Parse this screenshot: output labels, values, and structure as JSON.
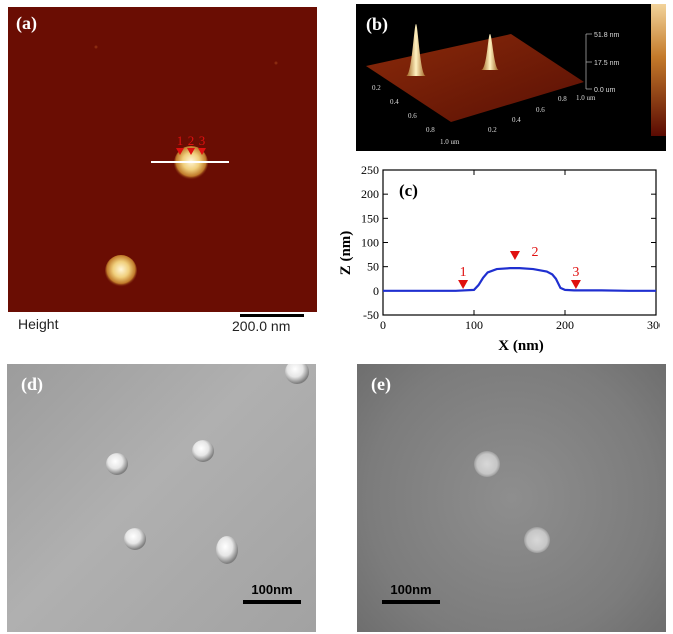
{
  "panel_a": {
    "label": "(a)",
    "marker_labels": [
      "1",
      "2",
      "3"
    ],
    "caption": "Height",
    "scale_bar": "200.0 nm"
  },
  "panel_b": {
    "label": "(b)",
    "z_ticks": [
      "51.8 nm",
      "17.5 nm",
      "0.0 um"
    ],
    "x_ticks": [
      "0.2",
      "0.4",
      "0.6",
      "0.8",
      "1.0 um"
    ],
    "y_ticks": [
      "0.2",
      "0.4",
      "0.6",
      "0.8",
      "1.0 um"
    ]
  },
  "panel_c": {
    "label": "(c)",
    "marker_labels": [
      "1",
      "2",
      "3"
    ],
    "colors": {
      "line": "#1f2fd0",
      "marker": "#e01010"
    }
  },
  "panel_d": {
    "label": "(d)",
    "scale_bar": "100nm"
  },
  "panel_e": {
    "label": "(e)",
    "scale_bar": "100nm"
  },
  "chart_data": {
    "type": "line",
    "title": "",
    "xlabel": "X (nm)",
    "ylabel": "Z (nm)",
    "xlim": [
      0,
      300
    ],
    "ylim": [
      -50,
      250
    ],
    "xticks": [
      0,
      100,
      200,
      300
    ],
    "yticks": [
      -50,
      0,
      50,
      100,
      150,
      200,
      250
    ],
    "series": [
      {
        "x": [
          0,
          40,
          80,
          100,
          105,
          110,
          115,
          125,
          140,
          150,
          165,
          180,
          186,
          190,
          195,
          200,
          210,
          240,
          270,
          300
        ],
        "values": [
          0,
          0,
          0,
          2,
          12,
          27,
          38,
          45,
          47,
          47,
          45,
          40,
          34,
          25,
          6,
          2,
          1,
          1,
          0,
          0
        ]
      }
    ],
    "markers": [
      {
        "label": "1",
        "x": 88,
        "y": 12
      },
      {
        "label": "2",
        "x": 145,
        "y": 72
      },
      {
        "label": "3",
        "x": 212,
        "y": 12
      }
    ]
  }
}
